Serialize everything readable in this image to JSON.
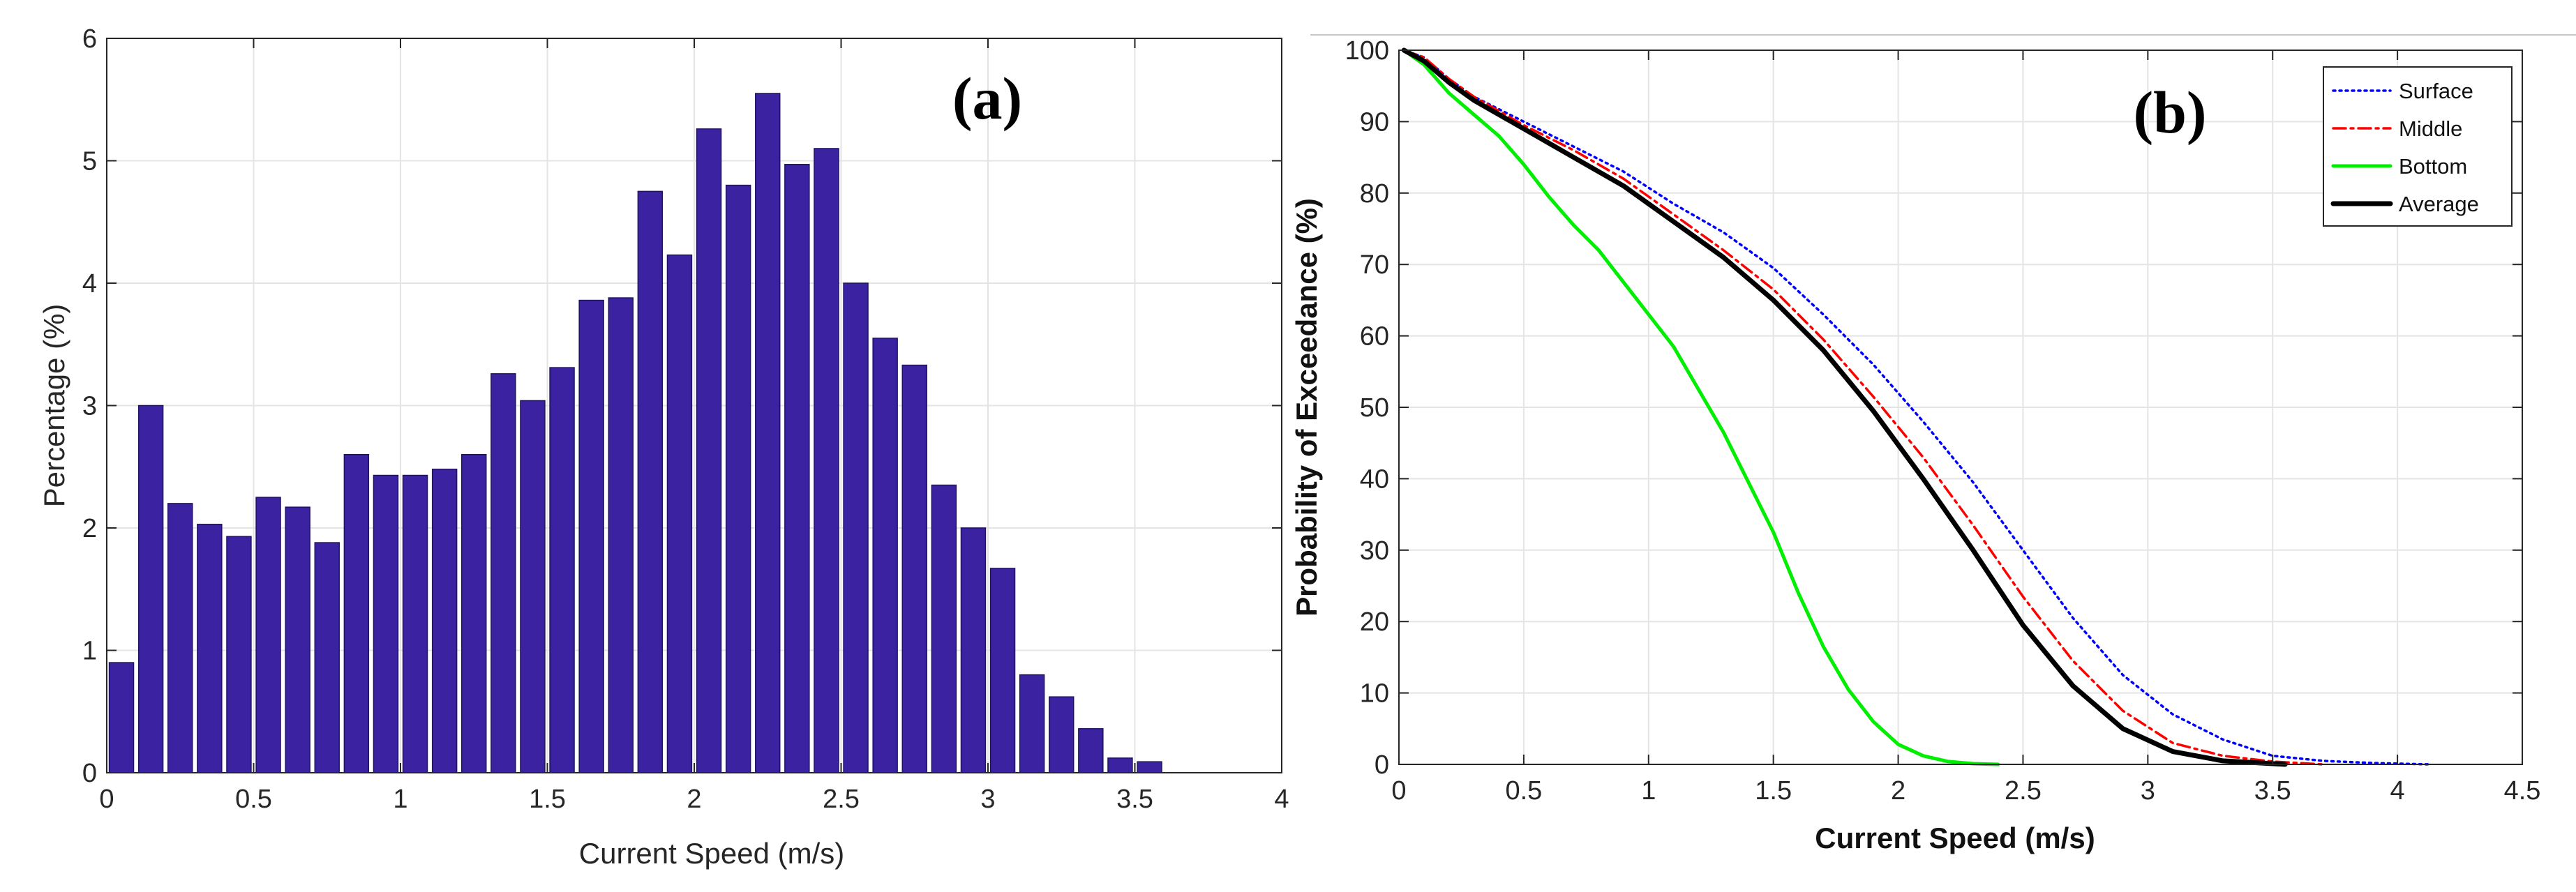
{
  "colors": {
    "bar": "#3b22a0",
    "bar_edge": "#21135f",
    "grid": "#e4e4e4",
    "axis": "#262626",
    "surface": "#0000ff",
    "middle": "#ff0000",
    "bottom": "#00ee00",
    "average": "#000000"
  },
  "chart_data": [
    {
      "panel_label": "(a)",
      "type": "bar",
      "title": "",
      "xlabel": "Current Speed (m/s)",
      "ylabel": "Percentage (%)",
      "xlim": [
        0,
        4
      ],
      "ylim": [
        0,
        6
      ],
      "xticks": [
        0,
        0.5,
        1,
        1.5,
        2,
        2.5,
        3,
        3.5,
        4
      ],
      "xtick_labels": [
        "0",
        "0.5",
        "1",
        "1.5",
        "2",
        "2.5",
        "3",
        "3.5",
        "4"
      ],
      "yticks": [
        0,
        1,
        2,
        3,
        4,
        5,
        6
      ],
      "ytick_labels": [
        "0",
        "1",
        "2",
        "3",
        "4",
        "5",
        "6"
      ],
      "grid": true,
      "bin_width": 0.1,
      "x": [
        0.1,
        0.2,
        0.3,
        0.4,
        0.5,
        0.6,
        0.7,
        0.8,
        0.9,
        1.0,
        1.1,
        1.2,
        1.3,
        1.4,
        1.5,
        1.6,
        1.7,
        1.8,
        1.9,
        2.0,
        2.1,
        2.2,
        2.3,
        2.4,
        2.5,
        2.6,
        2.7,
        2.8,
        2.9,
        3.0,
        3.1,
        3.2,
        3.3,
        3.4,
        3.5,
        3.6
      ],
      "values": [
        0.9,
        3.0,
        2.2,
        2.03,
        1.93,
        2.25,
        2.17,
        1.88,
        2.6,
        2.43,
        2.43,
        2.48,
        2.6,
        3.26,
        3.04,
        3.31,
        3.86,
        3.88,
        4.75,
        4.23,
        5.26,
        4.8,
        5.55,
        4.97,
        5.1,
        4.0,
        3.55,
        3.33,
        2.35,
        2.0,
        1.67,
        0.8,
        0.62,
        0.36,
        0.12,
        0.09
      ]
    },
    {
      "panel_label": "(b)",
      "type": "line",
      "title": "",
      "xlabel": "Current Speed (m/s)",
      "ylabel": "Probability of Exceedance (%)",
      "xlim": [
        0,
        4.5
      ],
      "ylim": [
        0,
        100
      ],
      "xticks": [
        0,
        0.5,
        1,
        1.5,
        2,
        2.5,
        3,
        3.5,
        4,
        4.5
      ],
      "xtick_labels": [
        "0",
        "0.5",
        "1",
        "1.5",
        "2",
        "2.5",
        "3",
        "3.5",
        "4",
        "4.5"
      ],
      "yticks": [
        0,
        10,
        20,
        30,
        40,
        50,
        60,
        70,
        80,
        90,
        100
      ],
      "ytick_labels": [
        "0",
        "10",
        "20",
        "30",
        "40",
        "50",
        "60",
        "70",
        "80",
        "90",
        "100"
      ],
      "grid": true,
      "legend_position": "top-right",
      "series": [
        {
          "name": "Surface",
          "style": "dotted",
          "x": [
            0.02,
            0.1,
            0.2,
            0.3,
            0.5,
            0.7,
            0.9,
            1.1,
            1.3,
            1.5,
            1.7,
            1.9,
            2.1,
            2.3,
            2.5,
            2.7,
            2.9,
            3.1,
            3.3,
            3.5,
            3.7,
            3.9,
            4.13
          ],
          "y": [
            100,
            99,
            96,
            93.5,
            90,
            86.5,
            83,
            78.5,
            74.5,
            69.5,
            63,
            56,
            48,
            39.5,
            30,
            20.5,
            12.5,
            7,
            3.5,
            1.2,
            0.5,
            0.2,
            0
          ]
        },
        {
          "name": "Middle",
          "style": "dashdot",
          "x": [
            0.02,
            0.1,
            0.2,
            0.3,
            0.5,
            0.7,
            0.9,
            1.1,
            1.3,
            1.5,
            1.7,
            1.9,
            2.1,
            2.3,
            2.5,
            2.7,
            2.9,
            3.1,
            3.3,
            3.5,
            3.7
          ],
          "y": [
            100,
            99,
            96,
            93.5,
            89.5,
            86,
            82,
            77,
            72,
            66.5,
            59.5,
            51.5,
            43,
            33.5,
            23.5,
            14.5,
            7.5,
            3,
            1.2,
            0.4,
            0
          ]
        },
        {
          "name": "Bottom",
          "style": "solid",
          "x": [
            0.02,
            0.1,
            0.2,
            0.3,
            0.4,
            0.5,
            0.6,
            0.7,
            0.8,
            0.9,
            1.0,
            1.1,
            1.2,
            1.3,
            1.4,
            1.5,
            1.6,
            1.7,
            1.8,
            1.9,
            2.0,
            2.1,
            2.2,
            2.3,
            2.4
          ],
          "y": [
            100,
            98,
            94,
            91,
            88,
            84,
            79.5,
            75.5,
            72,
            67.5,
            63,
            58.5,
            52.5,
            46.5,
            39.5,
            32.5,
            24,
            16.5,
            10.5,
            6,
            2.8,
            1.2,
            0.4,
            0.1,
            0
          ]
        },
        {
          "name": "Average",
          "style": "solid-thick",
          "x": [
            0.02,
            0.1,
            0.2,
            0.3,
            0.5,
            0.7,
            0.9,
            1.1,
            1.3,
            1.5,
            1.7,
            1.9,
            2.1,
            2.3,
            2.5,
            2.7,
            2.9,
            3.1,
            3.3,
            3.55
          ],
          "y": [
            100,
            98.5,
            95.5,
            93,
            89,
            85,
            81,
            76,
            71,
            65,
            58,
            49.5,
            40,
            30,
            19.5,
            11,
            5,
            1.8,
            0.5,
            0
          ]
        }
      ]
    }
  ]
}
